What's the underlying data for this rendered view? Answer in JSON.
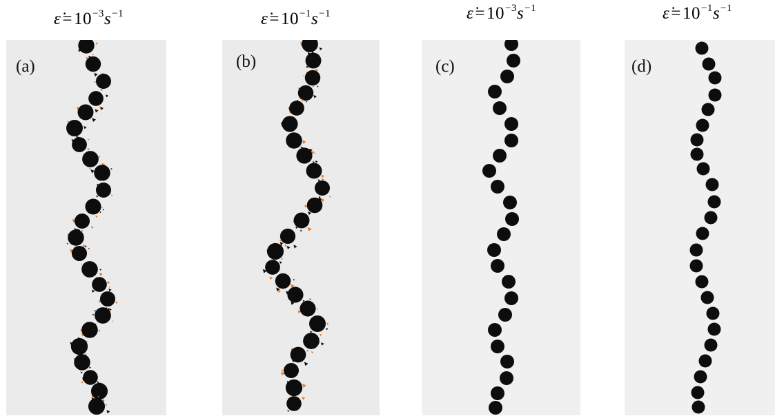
{
  "panels": [
    {
      "label": "(a)",
      "title": {
        "rate_symbol": "ε̇",
        "eq": "=",
        "base": "10",
        "exp": "−3",
        "unit": "s",
        "unit_exp": "−1"
      },
      "style": "rough"
    },
    {
      "label": "(b)",
      "title": {
        "rate_symbol": "ε̇",
        "eq": "=",
        "base": "10",
        "exp": "−1",
        "unit": "s",
        "unit_exp": "−1"
      },
      "style": "rough"
    },
    {
      "label": "(c)",
      "title": {
        "rate_symbol": "ε̇",
        "eq": "=",
        "base": "10",
        "exp": "−3",
        "unit": "s",
        "unit_exp": "−1"
      },
      "style": "smooth"
    },
    {
      "label": "(d)",
      "title": {
        "rate_symbol": "ε̇",
        "eq": "=",
        "base": "10",
        "exp": "−1",
        "unit": "s",
        "unit_exp": "−1"
      },
      "style": "smooth"
    }
  ],
  "colors": {
    "particle": "#0d0d0d",
    "fracture": "#e07a2a",
    "background_rough": "#ebebeb",
    "background_smooth": "#f0f0f0"
  }
}
